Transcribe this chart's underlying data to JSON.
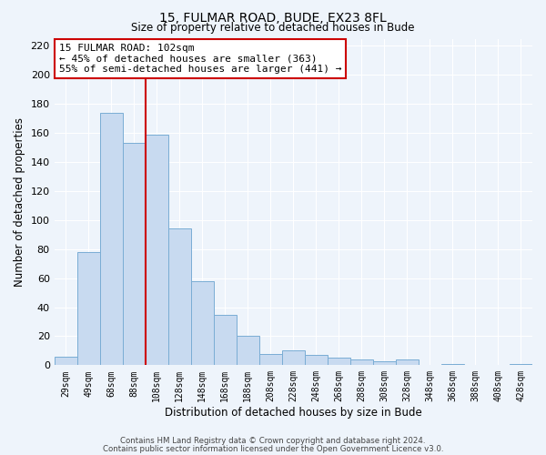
{
  "title": "15, FULMAR ROAD, BUDE, EX23 8FL",
  "subtitle": "Size of property relative to detached houses in Bude",
  "xlabel": "Distribution of detached houses by size in Bude",
  "ylabel": "Number of detached properties",
  "bar_labels": [
    "29sqm",
    "49sqm",
    "68sqm",
    "88sqm",
    "108sqm",
    "128sqm",
    "148sqm",
    "168sqm",
    "188sqm",
    "208sqm",
    "228sqm",
    "248sqm",
    "268sqm",
    "288sqm",
    "308sqm",
    "328sqm",
    "348sqm",
    "368sqm",
    "388sqm",
    "408sqm",
    "428sqm"
  ],
  "bar_values": [
    6,
    78,
    174,
    153,
    159,
    94,
    58,
    35,
    20,
    8,
    10,
    7,
    5,
    4,
    3,
    4,
    0,
    1,
    0,
    0,
    1
  ],
  "bar_color": "#c8daf0",
  "bar_edge_color": "#7aadd4",
  "vline_x": 3.5,
  "vline_color": "#cc0000",
  "annotation_title": "15 FULMAR ROAD: 102sqm",
  "annotation_line1": "← 45% of detached houses are smaller (363)",
  "annotation_line2": "55% of semi-detached houses are larger (441) →",
  "annotation_box_color": "#cc0000",
  "ylim": [
    0,
    225
  ],
  "yticks": [
    0,
    20,
    40,
    60,
    80,
    100,
    120,
    140,
    160,
    180,
    200,
    220
  ],
  "footer1": "Contains HM Land Registry data © Crown copyright and database right 2024.",
  "footer2": "Contains public sector information licensed under the Open Government Licence v3.0.",
  "bg_color": "#eef4fb",
  "grid_color": "#ffffff",
  "figsize": [
    6.0,
    5.0
  ],
  "dpi": 100
}
